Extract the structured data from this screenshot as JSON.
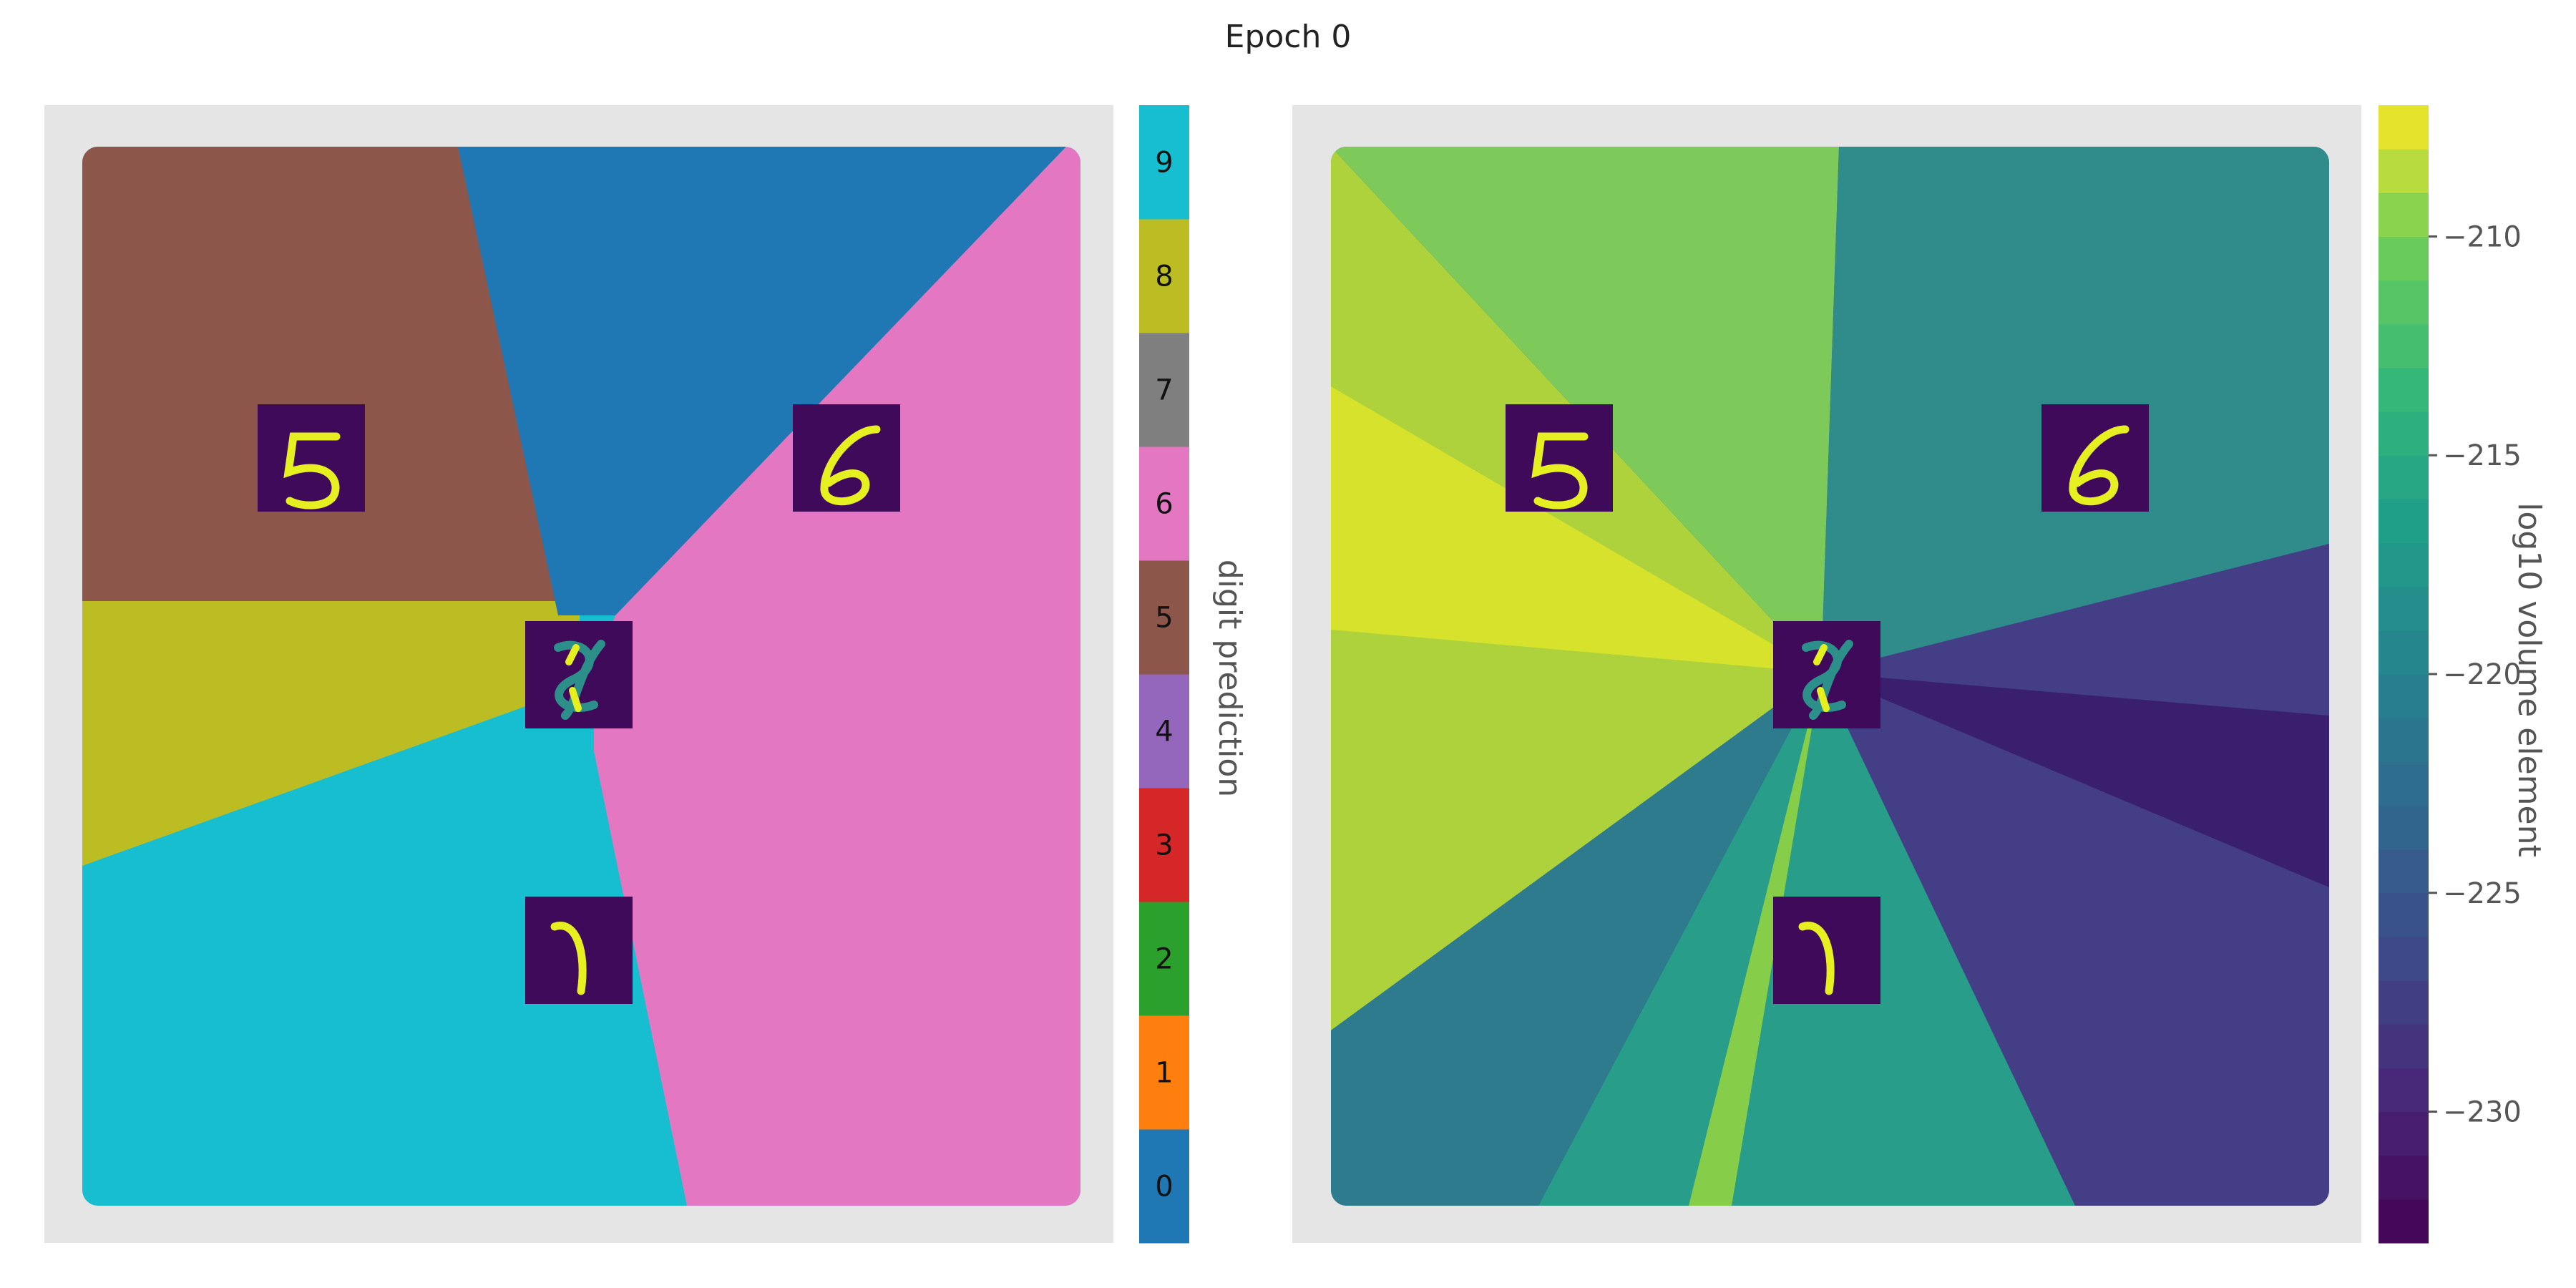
{
  "title": "Epoch 0",
  "chart_data": [
    {
      "type": "heatmap",
      "name": "digit prediction map",
      "grid": false,
      "colorbar": {
        "label": "digit prediction",
        "categories": [
          "0",
          "1",
          "2",
          "3",
          "4",
          "5",
          "6",
          "7",
          "8",
          "9"
        ],
        "colors": [
          "#1f77b4",
          "#ff7f0e",
          "#2ca02c",
          "#d62728",
          "#9467bd",
          "#8c564b",
          "#e377c2",
          "#7f7f7f",
          "#bcbd22",
          "#17becf"
        ]
      },
      "regions": [
        {
          "digit": "0",
          "location": "top center"
        },
        {
          "digit": "5",
          "location": "top-left"
        },
        {
          "digit": "6",
          "location": "right"
        },
        {
          "digit": "8",
          "location": "middle-left"
        },
        {
          "digit": "9",
          "location": "bottom-left"
        }
      ],
      "inset_images": [
        {
          "digit": "5",
          "location": "upper-left"
        },
        {
          "digit": "6",
          "location": "upper-right"
        },
        {
          "digit": "mixed",
          "location": "center"
        },
        {
          "digit": "1",
          "location": "lower-center"
        }
      ]
    },
    {
      "type": "heatmap",
      "name": "volume element map",
      "grid": false,
      "colorbar": {
        "label": "log10 volume element",
        "ticks": [
          -210,
          -215,
          -220,
          -225,
          -230
        ],
        "tick_labels": [
          "−210",
          "−215",
          "−220",
          "−225",
          "−230"
        ],
        "range": [
          -233,
          -207
        ],
        "colormap": "viridis"
      },
      "inset_images": [
        {
          "digit": "5",
          "location": "upper-left"
        },
        {
          "digit": "6",
          "location": "upper-right"
        },
        {
          "digit": "mixed",
          "location": "center"
        },
        {
          "digit": "1",
          "location": "lower-center"
        }
      ]
    }
  ]
}
